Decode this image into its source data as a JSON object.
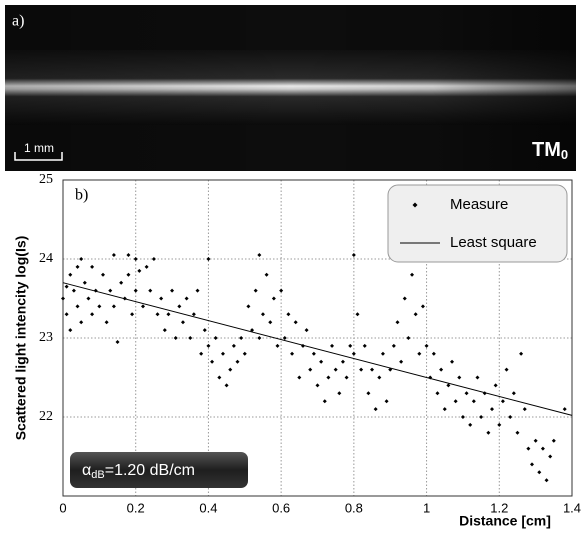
{
  "panel_a": {
    "label": "a)",
    "scale_bar": "1 mm",
    "mode": {
      "text": "TM",
      "subscript": "0"
    }
  },
  "chart_data": {
    "type": "scatter",
    "panel_label": "b)",
    "y_label": "Scattered light intencity log(Is)",
    "x_label": "Distance [cm]",
    "annotation": {
      "symbol": "α",
      "subscript": "dB",
      "text": "=1.20 dB/cm"
    },
    "xlim": [
      0,
      1.4
    ],
    "xticks": [
      0,
      0.2,
      0.4,
      0.6,
      0.8,
      1,
      1.2,
      1.4
    ],
    "ylim": [
      21,
      25
    ],
    "yticks": [
      22,
      23,
      24,
      25
    ],
    "grid": true,
    "legend": "upper right",
    "series": [
      {
        "name": "Measure",
        "type": "scatter",
        "color": "#000000",
        "x": [
          0,
          0.01,
          0.01,
          0.02,
          0.02,
          0.03,
          0.04,
          0.04,
          0.05,
          0.05,
          0.06,
          0.07,
          0.08,
          0.08,
          0.09,
          0.1,
          0.11,
          0.12,
          0.13,
          0.14,
          0.14,
          0.15,
          0.16,
          0.17,
          0.18,
          0.18,
          0.19,
          0.2,
          0.2,
          0.21,
          0.22,
          0.23,
          0.24,
          0.25,
          0.26,
          0.27,
          0.28,
          0.29,
          0.3,
          0.31,
          0.32,
          0.33,
          0.34,
          0.35,
          0.36,
          0.37,
          0.38,
          0.39,
          0.4,
          0.4,
          0.41,
          0.42,
          0.43,
          0.44,
          0.45,
          0.46,
          0.47,
          0.48,
          0.49,
          0.5,
          0.51,
          0.52,
          0.53,
          0.54,
          0.54,
          0.55,
          0.56,
          0.57,
          0.58,
          0.59,
          0.6,
          0.61,
          0.62,
          0.63,
          0.64,
          0.65,
          0.66,
          0.67,
          0.68,
          0.69,
          0.7,
          0.71,
          0.72,
          0.73,
          0.74,
          0.75,
          0.76,
          0.77,
          0.78,
          0.79,
          0.8,
          0.8,
          0.81,
          0.82,
          0.83,
          0.84,
          0.85,
          0.86,
          0.87,
          0.88,
          0.89,
          0.9,
          0.91,
          0.92,
          0.93,
          0.94,
          0.95,
          0.96,
          0.97,
          0.98,
          0.99,
          1,
          1.01,
          1.02,
          1.03,
          1.04,
          1.05,
          1.06,
          1.07,
          1.08,
          1.09,
          1.1,
          1.11,
          1.12,
          1.13,
          1.14,
          1.15,
          1.16,
          1.17,
          1.18,
          1.19,
          1.2,
          1.21,
          1.22,
          1.23,
          1.24,
          1.25,
          1.26,
          1.27,
          1.28,
          1.29,
          1.3,
          1.31,
          1.32,
          1.33,
          1.34,
          1.35,
          1.38
        ],
        "values": [
          23.5,
          23.65,
          23.3,
          23.8,
          23.1,
          23.6,
          23.9,
          23.4,
          24,
          23.2,
          23.7,
          23.5,
          23.9,
          23.3,
          23.6,
          23.4,
          23.8,
          23.2,
          23.6,
          24.05,
          23.4,
          22.95,
          23.7,
          23.5,
          24.05,
          23.8,
          23.3,
          24,
          23.6,
          23.85,
          23.4,
          23.9,
          23.6,
          24,
          23.3,
          23.5,
          23.1,
          23.3,
          23.6,
          23,
          23.4,
          23.2,
          23.5,
          23,
          23.3,
          23.6,
          22.8,
          23.1,
          24,
          22.9,
          22.7,
          23,
          22.5,
          22.8,
          22.4,
          22.6,
          22.9,
          22.7,
          23,
          22.8,
          23.4,
          23.1,
          23.6,
          24.05,
          23,
          23.3,
          23.8,
          23.2,
          23.5,
          22.9,
          23.6,
          23,
          23.3,
          22.8,
          23.2,
          22.5,
          22.9,
          23.1,
          22.6,
          22.8,
          22.4,
          22.7,
          22.2,
          22.5,
          22.9,
          22.6,
          22.3,
          22.7,
          22.5,
          22.9,
          24.05,
          22.8,
          23.3,
          22.6,
          22.9,
          22.3,
          22.6,
          22.1,
          22.5,
          22.8,
          22.2,
          22.6,
          22.9,
          23.2,
          22.7,
          23.5,
          23,
          23.8,
          23.3,
          22.8,
          23.4,
          22.9,
          22.5,
          22.8,
          22.3,
          22.6,
          22.1,
          22.4,
          22.7,
          22.2,
          22.5,
          22,
          22.3,
          21.9,
          22.2,
          22.5,
          22,
          22.3,
          21.8,
          22.1,
          22.4,
          21.9,
          22.2,
          22.6,
          22,
          22.3,
          21.8,
          22.8,
          22.1,
          21.6,
          21.4,
          21.7,
          21.3,
          21.6,
          21.2,
          21.5,
          21.7,
          22.1
        ]
      },
      {
        "name": "Least square",
        "type": "line",
        "color": "#000000",
        "x": [
          0,
          1.4
        ],
        "values": [
          23.7,
          22.02
        ]
      }
    ]
  }
}
